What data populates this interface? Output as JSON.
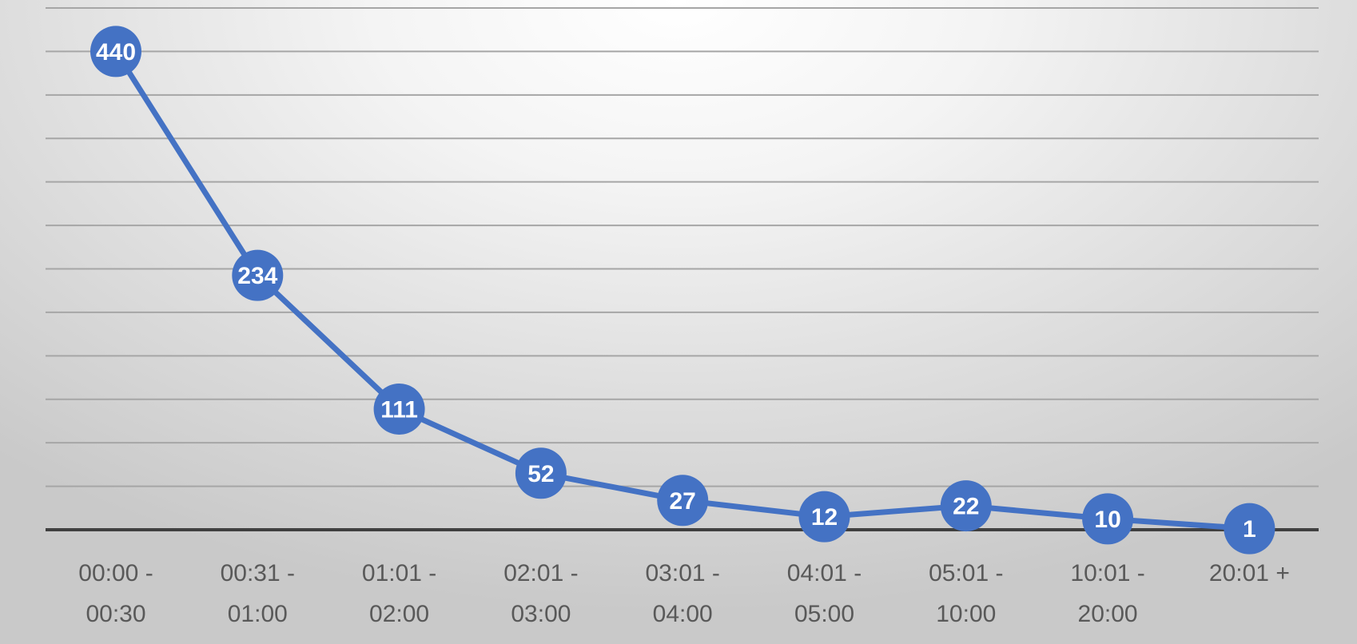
{
  "chart_data": {
    "type": "line",
    "title": "",
    "xlabel": "",
    "ylabel": "",
    "ylim": [
      0,
      480
    ],
    "grid": true,
    "legend": "none",
    "categories": [
      [
        "00:00 -",
        "00:30"
      ],
      [
        "00:31 -",
        "01:00"
      ],
      [
        "01:01 -",
        "02:00"
      ],
      [
        "02:01 -",
        "03:00"
      ],
      [
        "03:01 -",
        "04:00"
      ],
      [
        "04:01 -",
        "05:00"
      ],
      [
        "05:01 -",
        "10:00"
      ],
      [
        "10:01 -",
        "20:00"
      ],
      [
        "20:01 +"
      ]
    ],
    "series": [
      {
        "values": [
          440,
          234,
          111,
          52,
          27,
          12,
          22,
          10,
          1
        ],
        "color": "#4472c4"
      }
    ]
  }
}
